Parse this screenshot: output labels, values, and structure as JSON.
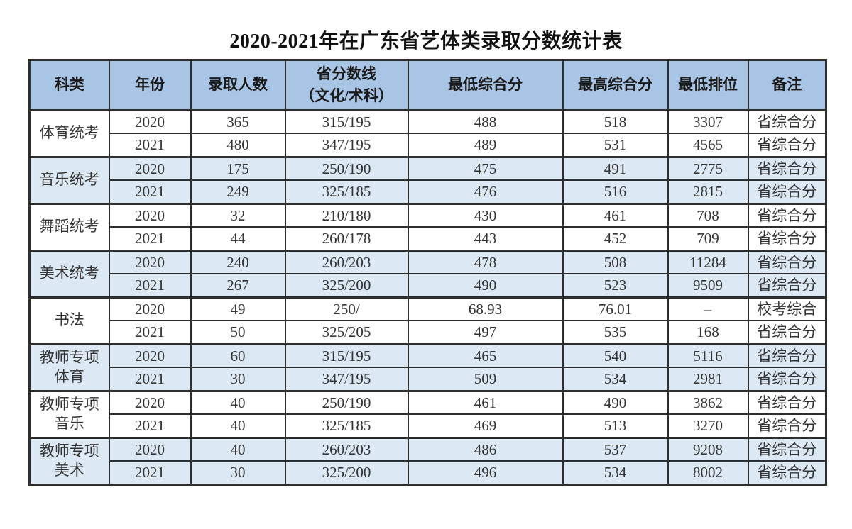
{
  "title": "2020-2021年在广东省艺体类录取分数统计表",
  "colors": {
    "header_bg": "#a8c5e6",
    "row_alt_bg": "#dce9f5",
    "border": "#2e2e2e",
    "text": "#333333"
  },
  "table": {
    "columns": [
      "科类",
      "年份",
      "录取人数",
      "省分数线\n（文化/术科）",
      "最低综合分",
      "最高综合分",
      "最低排位",
      "备注"
    ],
    "groups": [
      {
        "category": "体育统考",
        "shade": false,
        "rows": [
          {
            "year": "2020",
            "admitted": "365",
            "line": "315/195",
            "min": "488",
            "max": "518",
            "rank": "3307",
            "note": "省综合分"
          },
          {
            "year": "2021",
            "admitted": "480",
            "line": "347/195",
            "min": "489",
            "max": "531",
            "rank": "4565",
            "note": "省综合分"
          }
        ]
      },
      {
        "category": "音乐统考",
        "shade": true,
        "rows": [
          {
            "year": "2020",
            "admitted": "175",
            "line": "250/190",
            "min": "475",
            "max": "491",
            "rank": "2775",
            "note": "省综合分"
          },
          {
            "year": "2021",
            "admitted": "249",
            "line": "325/185",
            "min": "476",
            "max": "516",
            "rank": "2815",
            "note": "省综合分"
          }
        ]
      },
      {
        "category": "舞蹈统考",
        "shade": false,
        "rows": [
          {
            "year": "2020",
            "admitted": "32",
            "line": "210/180",
            "min": "430",
            "max": "461",
            "rank": "708",
            "note": "省综合分"
          },
          {
            "year": "2021",
            "admitted": "44",
            "line": "260/178",
            "min": "443",
            "max": "452",
            "rank": "709",
            "note": "省综合分"
          }
        ]
      },
      {
        "category": "美术统考",
        "shade": true,
        "rows": [
          {
            "year": "2020",
            "admitted": "240",
            "line": "260/203",
            "min": "478",
            "max": "508",
            "rank": "11284",
            "note": "省综合分"
          },
          {
            "year": "2021",
            "admitted": "267",
            "line": "325/200",
            "min": "490",
            "max": "523",
            "rank": "9509",
            "note": "省综合分"
          }
        ]
      },
      {
        "category": "书法",
        "shade": false,
        "rows": [
          {
            "year": "2020",
            "admitted": "49",
            "line": "250/",
            "min": "68.93",
            "max": "76.01",
            "rank": "–",
            "note": "校考综合"
          },
          {
            "year": "2021",
            "admitted": "50",
            "line": "325/205",
            "min": "497",
            "max": "535",
            "rank": "168",
            "note": "省综合分"
          }
        ]
      },
      {
        "category": "教师专项体育",
        "shade": true,
        "rows": [
          {
            "year": "2020",
            "admitted": "60",
            "line": "315/195",
            "min": "465",
            "max": "540",
            "rank": "5116",
            "note": "省综合分"
          },
          {
            "year": "2021",
            "admitted": "30",
            "line": "347/195",
            "min": "509",
            "max": "534",
            "rank": "2981",
            "note": "省综合分"
          }
        ]
      },
      {
        "category": "教师专项音乐",
        "shade": false,
        "rows": [
          {
            "year": "2020",
            "admitted": "40",
            "line": "250/190",
            "min": "461",
            "max": "490",
            "rank": "3862",
            "note": "省综合分"
          },
          {
            "year": "2021",
            "admitted": "40",
            "line": "325/185",
            "min": "469",
            "max": "513",
            "rank": "3270",
            "note": "省综合分"
          }
        ]
      },
      {
        "category": "教师专项美术",
        "shade": true,
        "rows": [
          {
            "year": "2020",
            "admitted": "40",
            "line": "260/203",
            "min": "486",
            "max": "537",
            "rank": "9208",
            "note": "省综合分"
          },
          {
            "year": "2021",
            "admitted": "30",
            "line": "325/200",
            "min": "496",
            "max": "534",
            "rank": "8002",
            "note": "省综合分"
          }
        ]
      }
    ]
  }
}
